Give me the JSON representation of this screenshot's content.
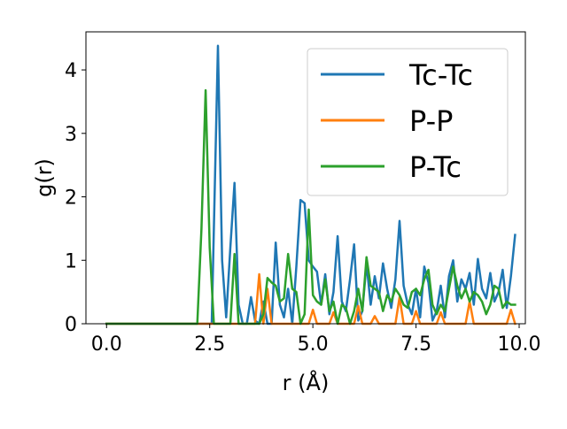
{
  "chart_data": {
    "type": "line",
    "xlabel": "r (Å)",
    "ylabel": "g(r)",
    "xlim": [
      -0.5,
      10.15
    ],
    "ylim": [
      0,
      4.6
    ],
    "xticks": [
      0.0,
      2.5,
      5.0,
      7.5,
      10.0
    ],
    "xtick_labels": [
      "0.0",
      "2.5",
      "5.0",
      "7.5",
      "10.0"
    ],
    "yticks": [
      0,
      1,
      2,
      3,
      4
    ],
    "ytick_labels": [
      "0",
      "1",
      "2",
      "3",
      "4"
    ],
    "grid": false,
    "legend_position": "top-right",
    "series": [
      {
        "name": "Tc-Tc",
        "color": "#1f77b4",
        "x": [
          0.0,
          2.5,
          2.55,
          2.6,
          2.7,
          2.8,
          2.9,
          3.0,
          3.1,
          3.2,
          3.3,
          3.4,
          3.5,
          3.6,
          3.7,
          3.8,
          3.9,
          4.0,
          4.1,
          4.2,
          4.3,
          4.4,
          4.5,
          4.6,
          4.7,
          4.8,
          4.9,
          5.0,
          5.1,
          5.2,
          5.3,
          5.4,
          5.5,
          5.6,
          5.7,
          5.8,
          5.9,
          6.0,
          6.1,
          6.2,
          6.3,
          6.4,
          6.5,
          6.6,
          6.7,
          6.8,
          6.9,
          7.0,
          7.1,
          7.2,
          7.3,
          7.4,
          7.5,
          7.6,
          7.7,
          7.8,
          7.9,
          8.0,
          8.1,
          8.2,
          8.3,
          8.4,
          8.5,
          8.6,
          8.7,
          8.8,
          8.9,
          9.0,
          9.1,
          9.2,
          9.3,
          9.4,
          9.5,
          9.6,
          9.7,
          9.8,
          9.9
        ],
        "y": [
          0.0,
          0.0,
          0.0,
          1.5,
          4.38,
          1.0,
          0.1,
          1.2,
          2.22,
          0.3,
          0.0,
          0.0,
          0.42,
          0.05,
          0.0,
          0.35,
          0.0,
          0.0,
          1.28,
          0.3,
          0.1,
          0.55,
          0.0,
          0.9,
          1.95,
          1.9,
          1.0,
          0.9,
          0.82,
          0.3,
          0.78,
          0.15,
          0.5,
          1.38,
          0.35,
          0.2,
          0.7,
          1.25,
          0.05,
          0.2,
          0.95,
          0.3,
          0.75,
          0.4,
          0.95,
          0.55,
          0.25,
          0.7,
          1.62,
          0.6,
          0.3,
          0.15,
          0.55,
          0.1,
          0.9,
          0.65,
          0.05,
          0.2,
          0.6,
          0.1,
          0.75,
          1.0,
          0.35,
          0.7,
          0.55,
          0.8,
          0.3,
          1.02,
          0.55,
          0.4,
          0.8,
          0.35,
          0.5,
          0.85,
          0.25,
          0.75,
          1.4
        ]
      },
      {
        "name": "P-P",
        "color": "#ff7f0e",
        "x": [
          0.0,
          3.5,
          3.6,
          3.7,
          3.8,
          3.9,
          4.0,
          4.1,
          4.2,
          4.3,
          4.4,
          4.5,
          4.6,
          4.7,
          4.8,
          4.9,
          5.0,
          5.1,
          5.2,
          5.3,
          5.4,
          5.5,
          5.6,
          5.7,
          5.8,
          5.9,
          6.0,
          6.1,
          6.2,
          6.3,
          6.4,
          6.5,
          6.6,
          6.7,
          6.8,
          6.9,
          7.0,
          7.1,
          7.2,
          7.3,
          7.4,
          7.5,
          7.6,
          7.7,
          7.8,
          7.9,
          8.0,
          8.1,
          8.2,
          8.3,
          8.4,
          8.5,
          8.6,
          8.7,
          8.8,
          8.9,
          9.0,
          9.1,
          9.2,
          9.3,
          9.4,
          9.5,
          9.6,
          9.7,
          9.8,
          9.9
        ],
        "y": [
          0.0,
          0.0,
          0.0,
          0.78,
          0.0,
          0.55,
          0.0,
          0.0,
          0.0,
          0.0,
          0.0,
          0.0,
          0.0,
          0.0,
          0.0,
          0.0,
          0.22,
          0.0,
          0.0,
          0.0,
          0.0,
          0.18,
          0.0,
          0.0,
          0.0,
          0.0,
          0.0,
          0.28,
          0.0,
          0.0,
          0.0,
          0.12,
          0.0,
          0.0,
          0.0,
          0.0,
          0.0,
          0.42,
          0.0,
          0.0,
          0.0,
          0.2,
          0.0,
          0.0,
          0.0,
          0.0,
          0.0,
          0.18,
          0.0,
          0.0,
          0.0,
          0.0,
          0.0,
          0.0,
          0.35,
          0.0,
          0.0,
          0.0,
          0.0,
          0.0,
          0.0,
          0.0,
          0.0,
          0.0,
          0.22,
          0.0
        ]
      },
      {
        "name": "P-Tc",
        "color": "#2ca02c",
        "x": [
          0.0,
          2.2,
          2.3,
          2.4,
          2.5,
          2.6,
          2.7,
          2.8,
          2.9,
          3.0,
          3.1,
          3.2,
          3.3,
          3.4,
          3.5,
          3.6,
          3.7,
          3.8,
          3.9,
          4.0,
          4.1,
          4.2,
          4.3,
          4.4,
          4.5,
          4.6,
          4.7,
          4.8,
          4.9,
          5.0,
          5.1,
          5.2,
          5.3,
          5.4,
          5.5,
          5.6,
          5.7,
          5.8,
          5.9,
          6.0,
          6.1,
          6.2,
          6.3,
          6.4,
          6.5,
          6.6,
          6.7,
          6.8,
          6.9,
          7.0,
          7.1,
          7.2,
          7.3,
          7.4,
          7.5,
          7.6,
          7.7,
          7.8,
          7.9,
          8.0,
          8.1,
          8.2,
          8.3,
          8.4,
          8.5,
          8.6,
          8.7,
          8.8,
          8.9,
          9.0,
          9.1,
          9.2,
          9.3,
          9.4,
          9.5,
          9.6,
          9.7,
          9.8,
          9.9
        ],
        "y": [
          0.0,
          0.0,
          1.5,
          3.68,
          1.2,
          0.0,
          0.0,
          0.0,
          0.0,
          0.0,
          1.1,
          0.0,
          0.0,
          0.0,
          0.0,
          0.0,
          0.0,
          0.15,
          0.72,
          0.65,
          0.6,
          0.35,
          0.4,
          1.1,
          0.55,
          0.5,
          0.0,
          0.15,
          1.8,
          0.45,
          0.35,
          0.3,
          0.7,
          0.2,
          0.35,
          0.0,
          0.3,
          0.25,
          0.0,
          0.2,
          0.55,
          0.2,
          1.05,
          0.6,
          0.55,
          0.5,
          0.2,
          0.45,
          0.35,
          0.55,
          0.45,
          0.3,
          0.25,
          0.5,
          0.55,
          0.45,
          0.7,
          0.85,
          0.3,
          0.15,
          0.3,
          0.2,
          0.55,
          0.9,
          0.6,
          0.4,
          0.55,
          0.35,
          0.5,
          0.45,
          0.35,
          0.15,
          0.3,
          0.6,
          0.55,
          0.25,
          0.35,
          0.3,
          0.3
        ]
      }
    ]
  }
}
